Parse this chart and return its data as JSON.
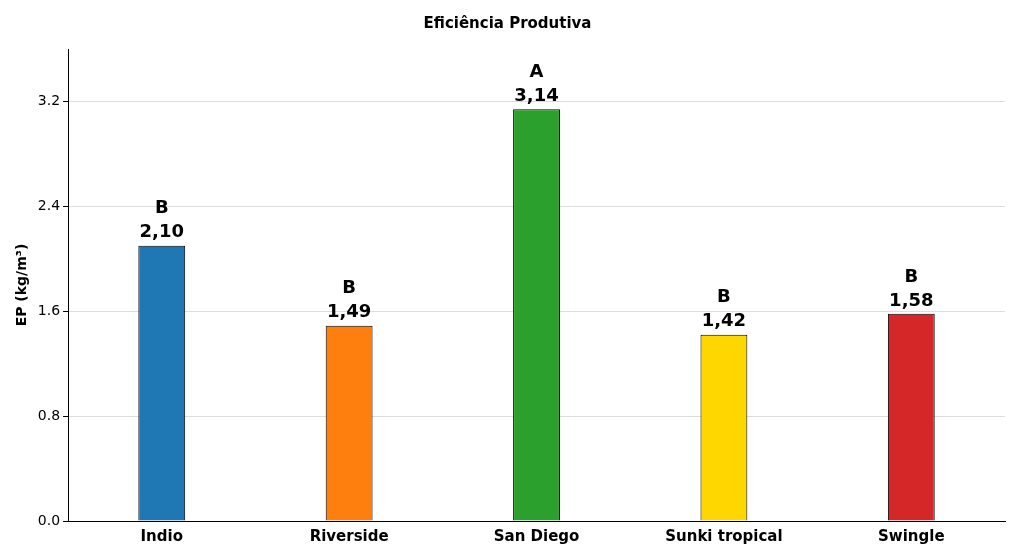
{
  "chart_data": {
    "type": "bar",
    "title": "Eficiência Produtiva",
    "ylabel": "EP (kg/m³)",
    "categories": [
      "Indio",
      "Riverside",
      "San Diego",
      "Sunki tropical",
      "Swingle"
    ],
    "values": [
      2.1,
      1.49,
      3.14,
      1.42,
      1.58
    ],
    "colors": [
      "#1f77b4",
      "#ff7f0e",
      "#2ca02c",
      "#ffd700",
      "#d62728"
    ],
    "value_labels": [
      "2,10",
      "1,49",
      "3,14",
      "1,42",
      "1,58"
    ],
    "annotations": [
      {
        "text": "B",
        "x": "Indio",
        "y": 2.1
      },
      {
        "text": "B",
        "x": "Riverside",
        "y": 1.49
      },
      {
        "text": "A",
        "x": "San Diego",
        "y": 3.14
      },
      {
        "text": "B",
        "x": "Sunki tropical",
        "y": 1.42
      },
      {
        "text": "B",
        "x": "Swingle",
        "y": 1.58
      }
    ],
    "ylim": [
      0,
      3.6
    ],
    "yticks": [
      {
        "value": 0,
        "label": "0.0"
      },
      0.8,
      1.6,
      2.4,
      3.2
    ],
    "grid": "y",
    "legend": false
  }
}
